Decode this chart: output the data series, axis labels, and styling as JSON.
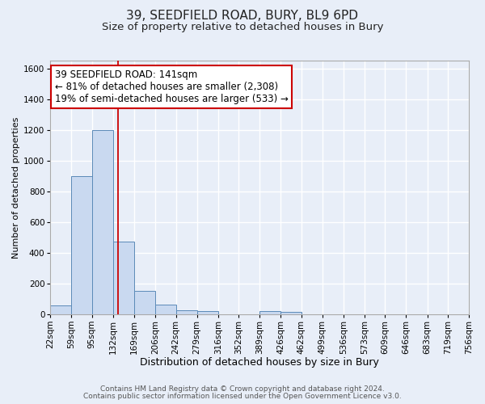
{
  "title": "39, SEEDFIELD ROAD, BURY, BL9 6PD",
  "subtitle": "Size of property relative to detached houses in Bury",
  "xlabel": "Distribution of detached houses by size in Bury",
  "ylabel": "Number of detached properties",
  "bar_edges": [
    22,
    59,
    95,
    132,
    169,
    206,
    242,
    279,
    316,
    352,
    389,
    426,
    462,
    499,
    536,
    573,
    609,
    646,
    683,
    719,
    756
  ],
  "bar_heights": [
    55,
    900,
    1200,
    470,
    150,
    60,
    25,
    20,
    0,
    0,
    20,
    15,
    0,
    0,
    0,
    0,
    0,
    0,
    0,
    0
  ],
  "bar_color": "#c9d9f0",
  "bar_edgecolor": "#5b8ab8",
  "property_line_x": 141,
  "property_line_color": "#cc0000",
  "ylim": [
    0,
    1650
  ],
  "yticks": [
    0,
    200,
    400,
    600,
    800,
    1000,
    1200,
    1400,
    1600
  ],
  "annotation_line1": "39 SEEDFIELD ROAD: 141sqm",
  "annotation_line2": "← 81% of detached houses are smaller (2,308)",
  "annotation_line3": "19% of semi-detached houses are larger (533) →",
  "background_color": "#e8eef8",
  "plot_bg_color": "#e8eef8",
  "footer_line1": "Contains HM Land Registry data © Crown copyright and database right 2024.",
  "footer_line2": "Contains public sector information licensed under the Open Government Licence v3.0.",
  "title_fontsize": 11,
  "subtitle_fontsize": 9.5,
  "xlabel_fontsize": 9,
  "ylabel_fontsize": 8,
  "tick_fontsize": 7.5,
  "annotation_fontsize": 8.5,
  "footer_fontsize": 6.5,
  "grid_color": "#ffffff",
  "grid_linewidth": 1.0,
  "tick_labels": [
    "22sqm",
    "59sqm",
    "95sqm",
    "132sqm",
    "169sqm",
    "206sqm",
    "242sqm",
    "279sqm",
    "316sqm",
    "352sqm",
    "389sqm",
    "426sqm",
    "462sqm",
    "499sqm",
    "536sqm",
    "573sqm",
    "609sqm",
    "646sqm",
    "683sqm",
    "719sqm",
    "756sqm"
  ]
}
